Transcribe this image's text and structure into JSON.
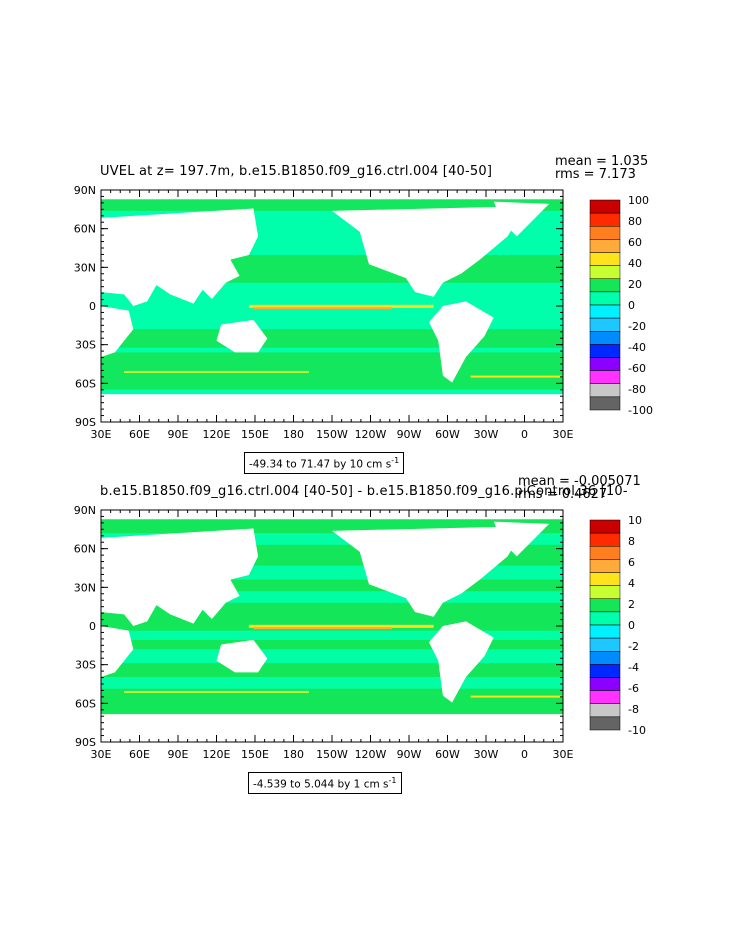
{
  "panels": [
    {
      "title": "UVEL at z= 197.7m, b.e15.B1850.f09_g16.ctrl.004 [40-50]",
      "mean": "mean = 1.035",
      "rms": "rms = 7.173",
      "range": "-49.34 to 71.47 by 10 cm s",
      "range_sup": "-1",
      "colorbar_labels": [
        "100",
        "80",
        "60",
        "40",
        "20",
        "0",
        "-20",
        "-40",
        "-60",
        "-80",
        "-100"
      ],
      "colorbar_colors": [
        "#c80000",
        "#ff2b00",
        "#ff7f1f",
        "#ffab3c",
        "#ffe11c",
        "#c8ff32",
        "#14e65a",
        "#00ffaa",
        "#00f0ff",
        "#1ec8ff",
        "#008cff",
        "#0028ff",
        "#8c00ff",
        "#ff32ff",
        "#c8c8c8",
        "#646464"
      ]
    },
    {
      "title": "b.e15.B1850.f09_g16.ctrl.004 [40-50] - b.e15.B1850.f09_g16.piControl.36 [10-",
      "mean": "mean = -0.005071",
      "rms": "rms = 0.4627",
      "range": "-4.539 to 5.044 by 1 cm s",
      "range_sup": "-1",
      "colorbar_labels": [
        "10",
        "8",
        "6",
        "4",
        "2",
        "0",
        "-2",
        "-4",
        "-6",
        "-8",
        "-10"
      ],
      "colorbar_colors": [
        "#c80000",
        "#ff2b00",
        "#ff7f1f",
        "#ffab3c",
        "#ffe11c",
        "#c8ff32",
        "#14e65a",
        "#00ffaa",
        "#00f0ff",
        "#1ec8ff",
        "#008cff",
        "#0028ff",
        "#8c00ff",
        "#ff32ff",
        "#c8c8c8",
        "#646464"
      ]
    }
  ],
  "lat_labels": [
    "90N",
    "60N",
    "30N",
    "0",
    "30S",
    "60S",
    "90S"
  ],
  "lon_labels": [
    "30E",
    "60E",
    "90E",
    "120E",
    "150E",
    "180",
    "150W",
    "120W",
    "90W",
    "60W",
    "30W",
    "0",
    "30E"
  ],
  "colors": {
    "ocean_main_top": "#00ffaa",
    "ocean_band_top": "#14e65a",
    "ocean_main_bottom": "#14e65a",
    "ocean_band_bottom": "#00ffaa",
    "land": "#ffffff"
  }
}
